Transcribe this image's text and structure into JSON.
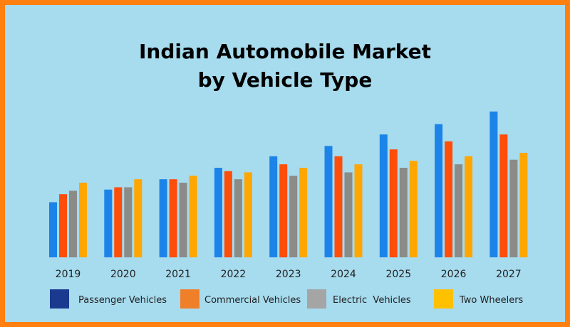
{
  "chart_data": {
    "type": "bar",
    "title_line1": "Indian Automobile Market",
    "title_line2": "by Vehicle Type",
    "categories": [
      "2019",
      "2020",
      "2021",
      "2022",
      "2023",
      "2024",
      "2025",
      "2026",
      "2027"
    ],
    "series": [
      {
        "name": "Passenger Vehicles",
        "color": "#1c84e8",
        "legend_color": "#1a3a8f",
        "values": [
          48,
          59,
          68,
          78,
          88,
          97,
          107,
          116,
          127
        ]
      },
      {
        "name": "Commercial Vehicles",
        "color": "#ff4d0a",
        "legend_color": "#f07f2a",
        "values": [
          55,
          61,
          68,
          75,
          81,
          88,
          94,
          101,
          107
        ]
      },
      {
        "name": "Electric  Vehicles",
        "color": "#8b8b87",
        "legend_color": "#a5a5a5",
        "values": [
          58,
          61,
          65,
          68,
          71,
          74,
          78,
          81,
          85
        ]
      },
      {
        "name": "Two Wheelers",
        "color": "#ffa600",
        "legend_color": "#ffc000",
        "values": [
          65,
          68,
          71,
          74,
          78,
          81,
          84,
          88,
          91
        ]
      }
    ],
    "ylim": [
      0,
      130
    ],
    "xlabel": "",
    "ylabel": "",
    "grid": false,
    "legend_position": "bottom"
  }
}
